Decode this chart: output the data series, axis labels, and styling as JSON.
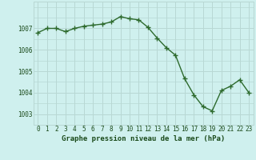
{
  "x": [
    0,
    1,
    2,
    3,
    4,
    5,
    6,
    7,
    8,
    9,
    10,
    11,
    12,
    13,
    14,
    15,
    16,
    17,
    18,
    19,
    20,
    21,
    22,
    23
  ],
  "y": [
    1006.8,
    1007.0,
    1007.0,
    1006.85,
    1007.0,
    1007.1,
    1007.15,
    1007.2,
    1007.3,
    1007.55,
    1007.45,
    1007.4,
    1007.05,
    1006.55,
    1006.1,
    1005.75,
    1004.65,
    1003.9,
    1003.35,
    1003.15,
    1004.1,
    1004.3,
    1004.6,
    1004.0
  ],
  "line_color": "#2d6a2d",
  "marker": "+",
  "marker_size": 4,
  "marker_lw": 1.0,
  "bg_color": "#cff0ee",
  "grid_color": "#b8d8d4",
  "title": "Graphe pression niveau de la mer (hPa)",
  "ylim": [
    1002.5,
    1008.25
  ],
  "xlim": [
    -0.5,
    23.5
  ],
  "yticks": [
    1003,
    1004,
    1005,
    1006,
    1007
  ],
  "xtick_labels": [
    "0",
    "1",
    "2",
    "3",
    "4",
    "5",
    "6",
    "7",
    "8",
    "9",
    "10",
    "11",
    "12",
    "13",
    "14",
    "15",
    "16",
    "17",
    "18",
    "19",
    "20",
    "21",
    "22",
    "23"
  ],
  "title_fontsize": 6.5,
  "tick_fontsize": 5.5,
  "title_color": "#1a4a1a",
  "tick_color": "#1a4a1a",
  "linewidth": 1.0
}
